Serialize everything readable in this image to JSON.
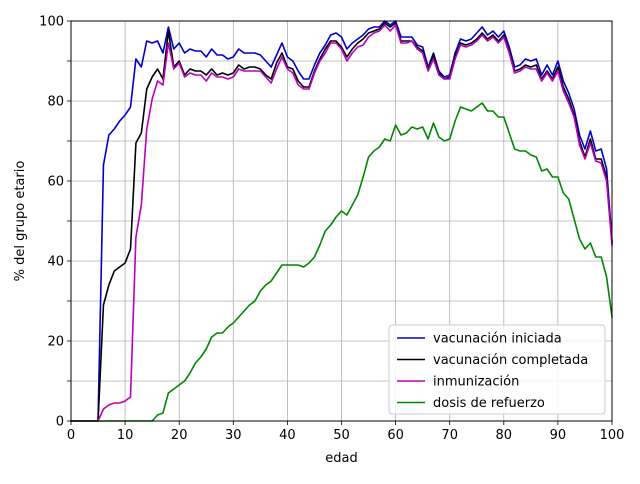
{
  "chart_data": {
    "type": "line",
    "title": "",
    "xlabel": "edad",
    "ylabel": "% del grupo etario",
    "xlim": [
      0,
      100
    ],
    "ylim": [
      0,
      100
    ],
    "xticks": [
      0,
      10,
      20,
      30,
      40,
      50,
      60,
      70,
      80,
      90,
      100
    ],
    "yticks": [
      0,
      20,
      40,
      60,
      80,
      100
    ],
    "grid": true,
    "legend_position": "lower-right",
    "x": [
      0,
      1,
      2,
      3,
      4,
      5,
      6,
      7,
      8,
      9,
      10,
      11,
      12,
      13,
      14,
      15,
      16,
      17,
      18,
      19,
      20,
      21,
      22,
      23,
      24,
      25,
      26,
      27,
      28,
      29,
      30,
      31,
      32,
      33,
      34,
      35,
      36,
      37,
      38,
      39,
      40,
      41,
      42,
      43,
      44,
      45,
      46,
      47,
      48,
      49,
      50,
      51,
      52,
      53,
      54,
      55,
      56,
      57,
      58,
      59,
      60,
      61,
      62,
      63,
      64,
      65,
      66,
      67,
      68,
      69,
      70,
      71,
      72,
      73,
      74,
      75,
      76,
      77,
      78,
      79,
      80,
      81,
      82,
      83,
      84,
      85,
      86,
      87,
      88,
      89,
      90,
      91,
      92,
      93,
      94,
      95,
      96,
      97,
      98,
      99,
      100
    ],
    "series": [
      {
        "name": "vacunación iniciada",
        "color": "#0000cc",
        "values": [
          0,
          0,
          0,
          0,
          0,
          0,
          64,
          71.5,
          73,
          75,
          76.5,
          78.5,
          90.5,
          88.5,
          95,
          94.5,
          95,
          92,
          98.5,
          93,
          94.5,
          92,
          93,
          92.5,
          92.5,
          91,
          93,
          91.5,
          91.5,
          90.5,
          91,
          93,
          92,
          92,
          92,
          91.5,
          90,
          88.5,
          91.5,
          94.5,
          91,
          90,
          87.5,
          85.5,
          85.5,
          89,
          92,
          94,
          96.5,
          97,
          96,
          93,
          94.5,
          95.5,
          96.5,
          98,
          98.5,
          98.5,
          100,
          99,
          100,
          96,
          96,
          96,
          94,
          93.5,
          88.5,
          92,
          87.5,
          86,
          86.5,
          92,
          95.5,
          95,
          95.5,
          97,
          98.5,
          96.5,
          97.5,
          96,
          97.5,
          93.5,
          88.5,
          89,
          90.5,
          90,
          90.5,
          86.5,
          89,
          86.5,
          90,
          85,
          82,
          78,
          71.5,
          68,
          72.5,
          67.5,
          68,
          63,
          45
        ]
      },
      {
        "name": "vacunación completada",
        "color": "#000000",
        "values": [
          0,
          0,
          0,
          0,
          0,
          0,
          29,
          34,
          37.5,
          38.5,
          39.5,
          43,
          69.5,
          72,
          83,
          86,
          88,
          85.5,
          97.5,
          88.5,
          90,
          86.5,
          88,
          87.5,
          87.5,
          86.5,
          88,
          86.5,
          87,
          86.5,
          87,
          89,
          88,
          88.5,
          88.5,
          88,
          86.5,
          85.5,
          89.5,
          92,
          88.5,
          88,
          85,
          83.5,
          83.5,
          87.5,
          90.5,
          93,
          95,
          95,
          93.5,
          91,
          93,
          94.5,
          95.5,
          97,
          97.5,
          98,
          99.5,
          98.5,
          99.5,
          95,
          95,
          95,
          93.5,
          92.5,
          88,
          91.5,
          87,
          85.5,
          86,
          91,
          94.5,
          94,
          94.5,
          95.5,
          97,
          95.5,
          96.5,
          95,
          96.5,
          92.5,
          87.5,
          88,
          89,
          88.5,
          89,
          85.5,
          87.5,
          85.5,
          88.5,
          83.5,
          80.5,
          76.5,
          70,
          66,
          70.5,
          65.5,
          65.5,
          61,
          44.5
        ]
      },
      {
        "name": "inmunización",
        "color": "#bb00bb",
        "values": [
          0,
          0,
          0,
          0,
          0,
          0,
          3,
          4,
          4.5,
          4.5,
          5,
          6,
          46,
          54,
          73,
          80.5,
          85,
          84,
          94.5,
          88,
          89.5,
          86,
          87,
          86.5,
          86.5,
          85,
          87,
          86,
          86,
          85.5,
          86,
          88,
          87.5,
          87.5,
          87.5,
          87.5,
          86,
          84.5,
          88,
          91,
          88,
          87,
          84,
          83,
          83,
          87,
          90,
          92,
          94.5,
          94.5,
          93,
          90,
          92,
          93.5,
          94,
          96,
          97,
          97.5,
          99,
          97.5,
          99,
          94.5,
          94.5,
          95,
          93,
          92,
          87.5,
          90.5,
          86.5,
          85.5,
          85.5,
          90.5,
          94,
          93.5,
          94,
          95,
          96.5,
          95,
          96,
          94.5,
          96,
          92,
          87,
          87.5,
          88.5,
          88,
          88,
          85,
          87,
          85,
          87.5,
          82.5,
          79.5,
          76,
          69,
          65.5,
          69.5,
          65,
          64.5,
          60,
          44
        ]
      },
      {
        "name": "dosis de refuerzo",
        "color": "#008800",
        "values": [
          0,
          0,
          0,
          0,
          0,
          0,
          0,
          0,
          0,
          0,
          0,
          0,
          0,
          0,
          0,
          0,
          1.5,
          2,
          7,
          8,
          9,
          10,
          12,
          14.5,
          16,
          18,
          21,
          22,
          22,
          23.5,
          24.5,
          26,
          27.5,
          29,
          30,
          32.5,
          34,
          35,
          37,
          39,
          39,
          39,
          39,
          38.5,
          39.5,
          41,
          44,
          47.5,
          49,
          51,
          52.5,
          51.5,
          54,
          56.5,
          61,
          66,
          67.5,
          68.5,
          70.5,
          70,
          74,
          71.5,
          72,
          73.5,
          73,
          73.5,
          70.5,
          74.5,
          71,
          70,
          70.5,
          75,
          78.5,
          78,
          77.5,
          78.5,
          79.5,
          77.5,
          77.5,
          76,
          76,
          72,
          68,
          67.5,
          67.5,
          66.5,
          66,
          62.5,
          63,
          61,
          61,
          57,
          55.5,
          50.5,
          45.5,
          43,
          44.5,
          41,
          41,
          36,
          26
        ]
      }
    ]
  }
}
